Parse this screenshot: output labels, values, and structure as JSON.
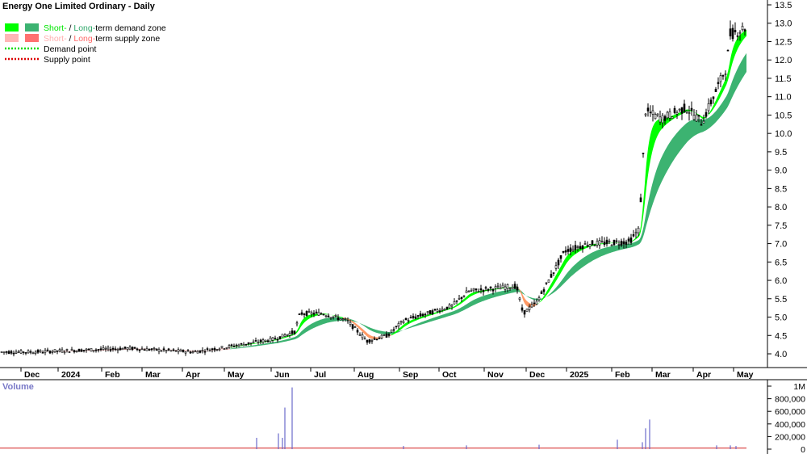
{
  "chart_data": {
    "type": "candlestick",
    "title": "Energy One Limited Ordinary - Daily",
    "legend": {
      "placement": "top-left",
      "items": [
        {
          "parts": [
            "Short-",
            " / ",
            "Long-",
            "term demand zone"
          ],
          "colors": [
            "#00e600",
            "#000000",
            "#2fa86a",
            "#000000"
          ],
          "swatches": [
            "#00ff00",
            "#3cb371"
          ]
        },
        {
          "parts": [
            "Short-",
            " / ",
            "Long-",
            "term supply zone"
          ],
          "colors": [
            "#ffb0b0",
            "#000000",
            "#ff6a6a",
            "#000000"
          ],
          "swatches": [
            "#ffb6b6",
            "#ff7070"
          ]
        },
        {
          "parts": [
            "Demand point"
          ],
          "colors": [
            "#000000"
          ],
          "line": "#00dd00"
        },
        {
          "parts": [
            "Supply point"
          ],
          "colors": [
            "#000000"
          ],
          "line": "#dd0000"
        }
      ]
    },
    "price_axis": {
      "ticks": [
        "4.0",
        "4.5",
        "5.0",
        "5.5",
        "6.0",
        "6.5",
        "7.0",
        "7.5",
        "8.0",
        "8.5",
        "9.0",
        "9.5",
        "10.0",
        "10.5",
        "11.0",
        "11.5",
        "12.0",
        "12.5",
        "13.0",
        "13.5"
      ],
      "min": 3.6,
      "max": 13.6
    },
    "x_axis_labels": [
      "Dec",
      "2024",
      "Feb",
      "Mar",
      "Apr",
      "May",
      "Jun",
      "Jul",
      "Aug",
      "Sep",
      "Oct",
      "Nov",
      "Dec",
      "2025",
      "Feb",
      "Mar",
      "Apr",
      "May"
    ],
    "volume_label": "Volume",
    "volume_axis": {
      "ticks": [
        "0",
        "200,000",
        "400,000",
        "600,000",
        "800,000",
        "1M"
      ],
      "max": 1000000
    },
    "price_anchors": [
      [
        0,
        4.05
      ],
      [
        40,
        4.05
      ],
      [
        100,
        4.1
      ],
      [
        160,
        4.15
      ],
      [
        200,
        4.1
      ],
      [
        240,
        4.05
      ],
      [
        285,
        4.2
      ],
      [
        340,
        4.4
      ],
      [
        365,
        4.6
      ],
      [
        372,
        5.1
      ],
      [
        400,
        5.1
      ],
      [
        430,
        4.9
      ],
      [
        455,
        4.35
      ],
      [
        480,
        4.5
      ],
      [
        500,
        4.9
      ],
      [
        560,
        5.3
      ],
      [
        580,
        5.7
      ],
      [
        640,
        5.85
      ],
      [
        648,
        5.1
      ],
      [
        665,
        5.4
      ],
      [
        700,
        6.8
      ],
      [
        730,
        7.0
      ],
      [
        780,
        7.05
      ],
      [
        792,
        7.4
      ],
      [
        800,
        10.6
      ],
      [
        820,
        10.4
      ],
      [
        850,
        10.7
      ],
      [
        870,
        10.3
      ],
      [
        880,
        10.8
      ],
      [
        900,
        11.8
      ],
      [
        905,
        12.7
      ],
      [
        925,
        12.9
      ]
    ],
    "volume_spikes": [
      [
        318,
        180000
      ],
      [
        345,
        250000
      ],
      [
        350,
        180000
      ],
      [
        353,
        660000
      ],
      [
        362,
        980000
      ],
      [
        500,
        50000
      ],
      [
        578,
        60000
      ],
      [
        668,
        70000
      ],
      [
        765,
        150000
      ],
      [
        796,
        110000
      ],
      [
        800,
        330000
      ],
      [
        805,
        470000
      ],
      [
        888,
        60000
      ],
      [
        905,
        60000
      ],
      [
        912,
        50000
      ]
    ],
    "volume_base": 18000
  }
}
